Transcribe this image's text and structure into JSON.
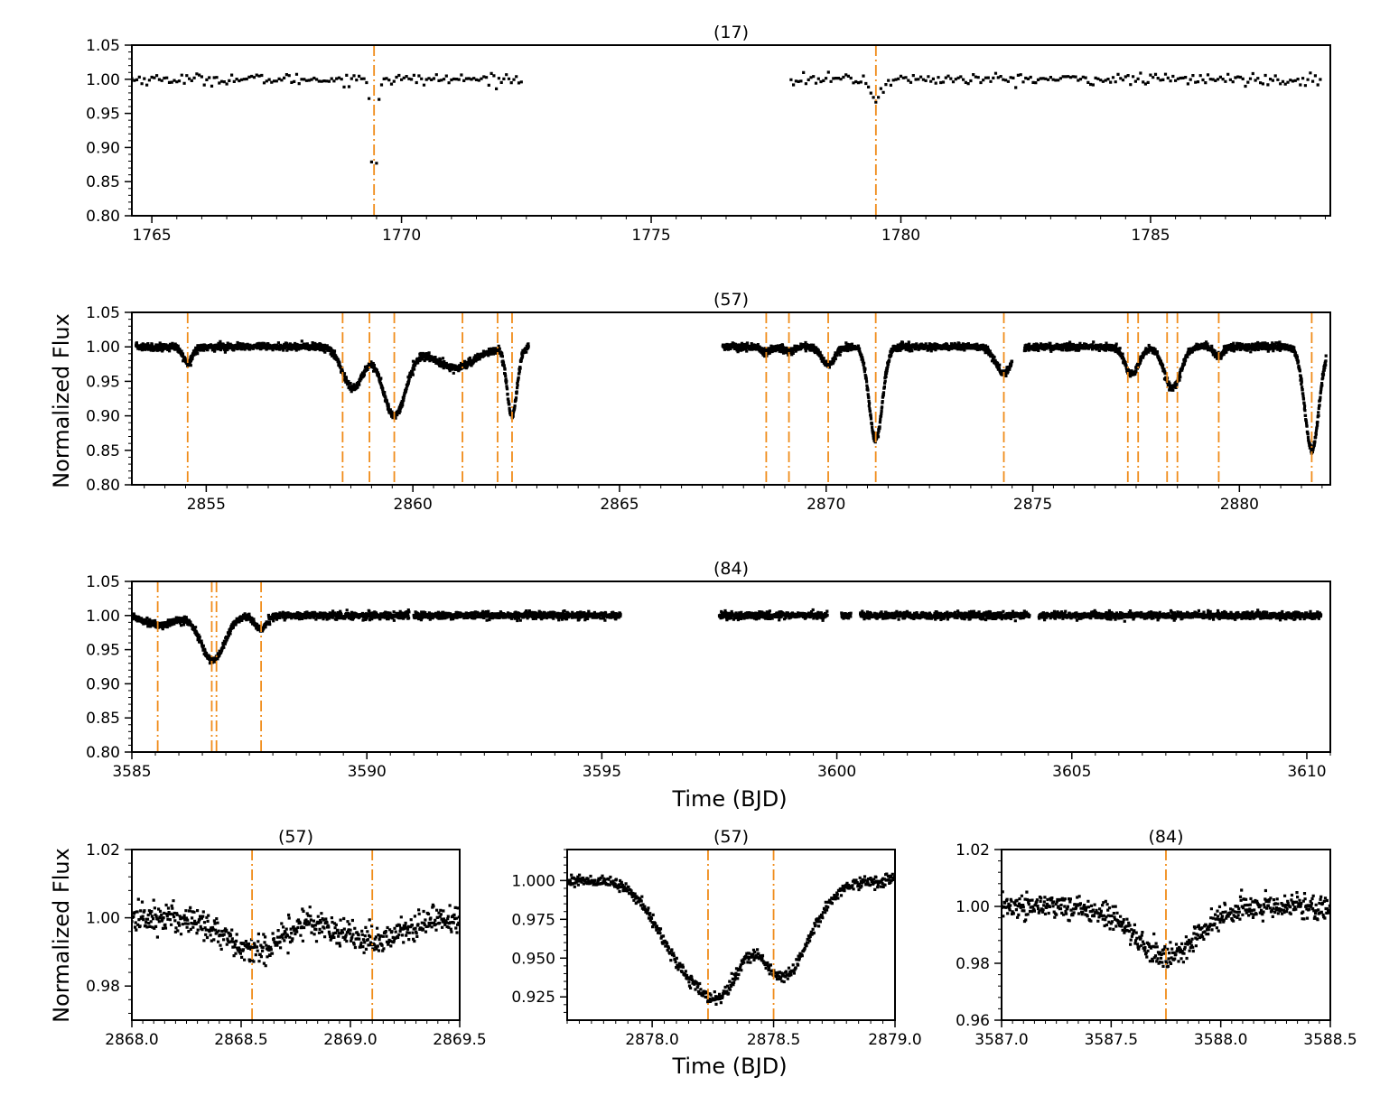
{
  "figure": {
    "ylabel_top": "Normalized Flux",
    "xlabel_top": "Time (BJD)",
    "ylabel_bottom": "Normalized Flux",
    "xlabel_bottom": "Time (BJD)"
  },
  "chart_data": [
    {
      "id": "p17",
      "type": "scatter",
      "title": "(17)",
      "xlim": [
        1764.6,
        1788.6
      ],
      "ylim": [
        0.8,
        1.05
      ],
      "xticks": [
        1765,
        1770,
        1775,
        1780,
        1785
      ],
      "yticks": [
        0.8,
        0.85,
        0.9,
        0.95,
        1.0,
        1.05
      ],
      "ytick_decimals": 2,
      "xtick_decimals": 0,
      "eclipse_lines": [
        1769.45,
        1779.5
      ],
      "series_description": "sparse photometry; segments 1764.6-1772.4 and 1777.8-1788.4",
      "segments": [
        [
          1764.6,
          1772.4
        ],
        [
          1777.8,
          1788.4
        ]
      ],
      "dips": [
        {
          "t": 1769.45,
          "depth": 0.2,
          "width": 0.05
        },
        {
          "t": 1779.5,
          "depth": 0.028,
          "width": 0.12
        }
      ],
      "noise": 0.004,
      "cadence": 0.05
    },
    {
      "id": "p57",
      "type": "scatter",
      "title": "(57)",
      "xlim": [
        2853.2,
        2882.2
      ],
      "ylim": [
        0.8,
        1.05
      ],
      "xticks": [
        2855,
        2860,
        2865,
        2870,
        2875,
        2880
      ],
      "yticks": [
        0.8,
        0.85,
        0.9,
        0.95,
        1.0,
        1.05
      ],
      "ytick_decimals": 2,
      "xtick_decimals": 0,
      "eclipse_lines": [
        2854.55,
        2858.3,
        2858.95,
        2859.55,
        2861.2,
        2862.05,
        2862.4,
        2868.55,
        2869.1,
        2870.05,
        2871.2,
        2874.3,
        2877.3,
        2877.55,
        2878.25,
        2878.5,
        2879.5,
        2881.75
      ],
      "segments": [
        [
          2853.3,
          2862.8
        ],
        [
          2867.5,
          2874.5
        ],
        [
          2874.8,
          2882.1
        ]
      ],
      "dips": [
        {
          "t": 2854.55,
          "depth": 0.022,
          "width": 0.12
        },
        {
          "t": 2858.55,
          "depth": 0.06,
          "width": 0.25
        },
        {
          "t": 2859.55,
          "depth": 0.1,
          "width": 0.28
        },
        {
          "t": 2861.0,
          "depth": 0.03,
          "width": 0.5
        },
        {
          "t": 2862.4,
          "depth": 0.1,
          "width": 0.12
        },
        {
          "t": 2868.55,
          "depth": 0.009,
          "width": 0.1
        },
        {
          "t": 2869.1,
          "depth": 0.007,
          "width": 0.1
        },
        {
          "t": 2870.05,
          "depth": 0.027,
          "width": 0.15
        },
        {
          "t": 2871.2,
          "depth": 0.135,
          "width": 0.16
        },
        {
          "t": 2874.3,
          "depth": 0.038,
          "width": 0.2
        },
        {
          "t": 2877.4,
          "depth": 0.04,
          "width": 0.17
        },
        {
          "t": 2878.38,
          "depth": 0.06,
          "width": 0.2
        },
        {
          "t": 2879.5,
          "depth": 0.015,
          "width": 0.1
        },
        {
          "t": 2881.75,
          "depth": 0.15,
          "width": 0.17
        }
      ],
      "noise": 0.0025,
      "cadence": 0.006
    },
    {
      "id": "p84",
      "type": "scatter",
      "title": "(84)",
      "xlim": [
        3585.0,
        3610.5
      ],
      "ylim": [
        0.8,
        1.05
      ],
      "xticks": [
        3585,
        3590,
        3595,
        3600,
        3605,
        3610
      ],
      "yticks": [
        0.8,
        0.85,
        0.9,
        0.95,
        1.0,
        1.05
      ],
      "ytick_decimals": 2,
      "xtick_decimals": 0,
      "eclipse_lines": [
        3585.55,
        3586.7,
        3586.8,
        3587.75
      ],
      "segments": [
        [
          3585.0,
          3590.9
        ],
        [
          3591.0,
          3595.4
        ],
        [
          3597.5,
          3599.8
        ],
        [
          3600.1,
          3600.3
        ],
        [
          3600.5,
          3604.1
        ],
        [
          3604.3,
          3610.3
        ]
      ],
      "dips": [
        {
          "t": 3585.6,
          "depth": 0.014,
          "width": 0.3
        },
        {
          "t": 3586.72,
          "depth": 0.066,
          "width": 0.25
        },
        {
          "t": 3587.75,
          "depth": 0.02,
          "width": 0.12
        }
      ],
      "noise": 0.0025,
      "cadence": 0.006
    },
    {
      "id": "z57a",
      "type": "scatter",
      "title": "(57)",
      "xlim": [
        2868.0,
        2869.5
      ],
      "ylim": [
        0.97,
        1.02
      ],
      "xticks": [
        2868.0,
        2868.5,
        2869.0,
        2869.5
      ],
      "yticks": [
        0.98,
        1.0,
        1.02
      ],
      "ytick_decimals": 2,
      "xtick_decimals": 1,
      "eclipse_lines": [
        2868.55,
        2869.1
      ],
      "segments": [
        [
          2868.0,
          2869.5
        ]
      ],
      "dips": [
        {
          "t": 2868.55,
          "depth": 0.01,
          "width": 0.12
        },
        {
          "t": 2869.1,
          "depth": 0.0065,
          "width": 0.14
        }
      ],
      "noise": 0.0022,
      "cadence": 0.0025
    },
    {
      "id": "z57b",
      "type": "scatter",
      "title": "(57)",
      "xlim": [
        2877.65,
        2879.0
      ],
      "ylim": [
        0.91,
        1.02
      ],
      "xticks": [
        2878.0,
        2878.5,
        2879.0
      ],
      "yticks": [
        0.925,
        0.95,
        0.975,
        1.0
      ],
      "ytick_decimals": 3,
      "xtick_decimals": 1,
      "eclipse_lines": [
        2878.23,
        2878.5
      ],
      "segments": [
        [
          2877.65,
          2879.0
        ]
      ],
      "dips": [
        {
          "t": 2878.15,
          "depth": 0.055,
          "width": 0.12
        },
        {
          "t": 2878.3,
          "depth": 0.045,
          "width": 0.08
        },
        {
          "t": 2878.52,
          "depth": 0.048,
          "width": 0.09
        },
        {
          "t": 2878.62,
          "depth": 0.02,
          "width": 0.1
        }
      ],
      "noise": 0.0018,
      "cadence": 0.0022
    },
    {
      "id": "z84",
      "type": "scatter",
      "title": "(84)",
      "xlim": [
        3587.0,
        3588.5
      ],
      "ylim": [
        0.96,
        1.02
      ],
      "xticks": [
        3587.0,
        3587.5,
        3588.0,
        3588.5
      ],
      "yticks": [
        0.96,
        0.98,
        1.0,
        1.02
      ],
      "ytick_decimals": 2,
      "xtick_decimals": 1,
      "eclipse_lines": [
        3587.75
      ],
      "segments": [
        [
          3587.0,
          3588.5
        ]
      ],
      "dips": [
        {
          "t": 3587.75,
          "depth": 0.018,
          "width": 0.14
        }
      ],
      "noise": 0.0022,
      "cadence": 0.0025
    }
  ]
}
